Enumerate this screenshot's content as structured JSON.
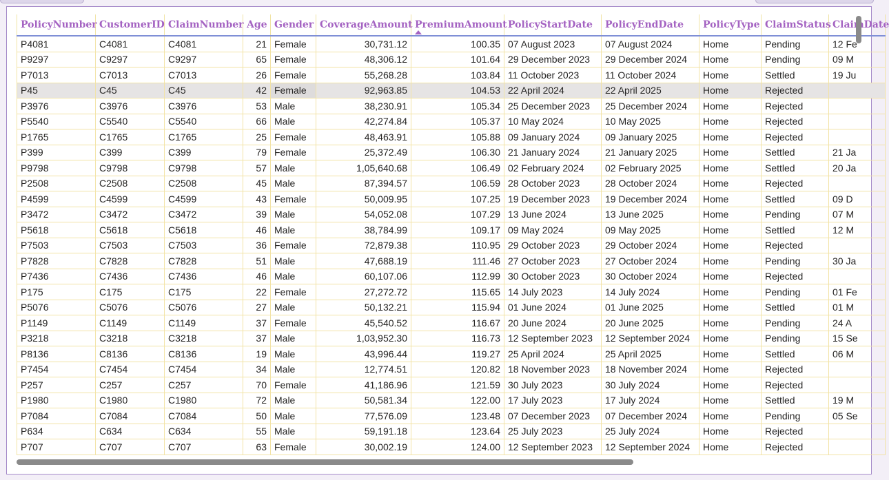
{
  "table": {
    "columns": [
      {
        "key": "policy",
        "label": "PolicyNumber"
      },
      {
        "key": "customer",
        "label": "CustomerID"
      },
      {
        "key": "claim",
        "label": "ClaimNumber"
      },
      {
        "key": "age",
        "label": "Age"
      },
      {
        "key": "gender",
        "label": "Gender"
      },
      {
        "key": "coverage",
        "label": "CoverageAmount"
      },
      {
        "key": "premium",
        "label": "PremiumAmount"
      },
      {
        "key": "start",
        "label": "PolicyStartDate"
      },
      {
        "key": "end",
        "label": "PolicyEndDate"
      },
      {
        "key": "type",
        "label": "PolicyType"
      },
      {
        "key": "status",
        "label": "ClaimStatus"
      },
      {
        "key": "claimdate",
        "label": "ClaimDate"
      }
    ],
    "sorted_column": "PremiumAmount",
    "sort_direction": "ascending",
    "selected_row": 3,
    "rows": [
      [
        "P4081",
        "C4081",
        "C4081",
        "21",
        "Female",
        "30,731.12",
        "100.35",
        "07 August 2023",
        "07 August 2024",
        "Home",
        "Pending",
        "12 Fe"
      ],
      [
        "P9297",
        "C9297",
        "C9297",
        "65",
        "Female",
        "48,306.12",
        "101.64",
        "29 December 2023",
        "29 December 2024",
        "Home",
        "Pending",
        "09 M"
      ],
      [
        "P7013",
        "C7013",
        "C7013",
        "26",
        "Female",
        "55,268.28",
        "103.84",
        "11 October 2023",
        "11 October 2024",
        "Home",
        "Settled",
        "19 Ju"
      ],
      [
        "P45",
        "C45",
        "C45",
        "42",
        "Female",
        "92,963.85",
        "104.53",
        "22 April 2024",
        "22 April 2025",
        "Home",
        "Rejected",
        ""
      ],
      [
        "P3976",
        "C3976",
        "C3976",
        "53",
        "Male",
        "38,230.91",
        "105.34",
        "25 December 2023",
        "25 December 2024",
        "Home",
        "Rejected",
        ""
      ],
      [
        "P5540",
        "C5540",
        "C5540",
        "66",
        "Male",
        "42,274.84",
        "105.37",
        "10 May 2024",
        "10 May 2025",
        "Home",
        "Rejected",
        ""
      ],
      [
        "P1765",
        "C1765",
        "C1765",
        "25",
        "Female",
        "48,463.91",
        "105.88",
        "09 January 2024",
        "09 January 2025",
        "Home",
        "Rejected",
        ""
      ],
      [
        "P399",
        "C399",
        "C399",
        "79",
        "Female",
        "25,372.49",
        "106.30",
        "21 January 2024",
        "21 January 2025",
        "Home",
        "Settled",
        "21 Ja"
      ],
      [
        "P9798",
        "C9798",
        "C9798",
        "57",
        "Male",
        "1,05,640.68",
        "106.49",
        "02 February 2024",
        "02 February 2025",
        "Home",
        "Settled",
        "20 Ja"
      ],
      [
        "P2508",
        "C2508",
        "C2508",
        "45",
        "Male",
        "87,394.57",
        "106.59",
        "28 October 2023",
        "28 October 2024",
        "Home",
        "Rejected",
        ""
      ],
      [
        "P4599",
        "C4599",
        "C4599",
        "43",
        "Female",
        "50,009.95",
        "107.25",
        "19 December 2023",
        "19 December 2024",
        "Home",
        "Settled",
        "09 D"
      ],
      [
        "P3472",
        "C3472",
        "C3472",
        "39",
        "Male",
        "54,052.08",
        "107.29",
        "13 June 2024",
        "13 June 2025",
        "Home",
        "Pending",
        "07 M"
      ],
      [
        "P5618",
        "C5618",
        "C5618",
        "46",
        "Male",
        "38,784.99",
        "109.17",
        "09 May 2024",
        "09 May 2025",
        "Home",
        "Settled",
        "12 M"
      ],
      [
        "P7503",
        "C7503",
        "C7503",
        "36",
        "Female",
        "72,879.38",
        "110.95",
        "29 October 2023",
        "29 October 2024",
        "Home",
        "Rejected",
        ""
      ],
      [
        "P7828",
        "C7828",
        "C7828",
        "51",
        "Male",
        "47,688.19",
        "111.46",
        "27 October 2023",
        "27 October 2024",
        "Home",
        "Pending",
        "30 Ja"
      ],
      [
        "P7436",
        "C7436",
        "C7436",
        "46",
        "Male",
        "60,107.06",
        "112.99",
        "30 October 2023",
        "30 October 2024",
        "Home",
        "Rejected",
        ""
      ],
      [
        "P175",
        "C175",
        "C175",
        "22",
        "Female",
        "27,272.72",
        "115.65",
        "14 July 2023",
        "14 July 2024",
        "Home",
        "Pending",
        "01 Fe"
      ],
      [
        "P5076",
        "C5076",
        "C5076",
        "27",
        "Male",
        "50,132.21",
        "115.94",
        "01 June 2024",
        "01 June 2025",
        "Home",
        "Settled",
        "01 M"
      ],
      [
        "P1149",
        "C1149",
        "C1149",
        "37",
        "Female",
        "45,540.52",
        "116.67",
        "20 June 2024",
        "20 June 2025",
        "Home",
        "Pending",
        "24 A"
      ],
      [
        "P3218",
        "C3218",
        "C3218",
        "37",
        "Male",
        "1,03,952.30",
        "116.73",
        "12 September 2023",
        "12 September 2024",
        "Home",
        "Pending",
        "15 Se"
      ],
      [
        "P8136",
        "C8136",
        "C8136",
        "19",
        "Male",
        "43,996.44",
        "119.27",
        "25 April 2024",
        "25 April 2025",
        "Home",
        "Settled",
        "06 M"
      ],
      [
        "P7454",
        "C7454",
        "C7454",
        "34",
        "Male",
        "12,774.51",
        "120.82",
        "18 November 2023",
        "18 November 2024",
        "Home",
        "Rejected",
        ""
      ],
      [
        "P257",
        "C257",
        "C257",
        "70",
        "Female",
        "41,186.96",
        "121.59",
        "30 July 2023",
        "30 July 2024",
        "Home",
        "Rejected",
        ""
      ],
      [
        "P1980",
        "C1980",
        "C1980",
        "72",
        "Male",
        "50,581.34",
        "122.00",
        "17 July 2023",
        "17 July 2024",
        "Home",
        "Settled",
        "19 M"
      ],
      [
        "P7084",
        "C7084",
        "C7084",
        "50",
        "Male",
        "77,576.09",
        "123.48",
        "07 December 2023",
        "07 December 2024",
        "Home",
        "Pending",
        "05 Se"
      ],
      [
        "P634",
        "C634",
        "C634",
        "55",
        "Male",
        "59,191.18",
        "123.64",
        "25 July 2023",
        "25 July 2024",
        "Home",
        "Rejected",
        ""
      ],
      [
        "P707",
        "C707",
        "C707",
        "63",
        "Female",
        "30,002.19",
        "124.00",
        "12 September 2023",
        "12 September 2024",
        "Home",
        "Rejected",
        ""
      ]
    ]
  }
}
